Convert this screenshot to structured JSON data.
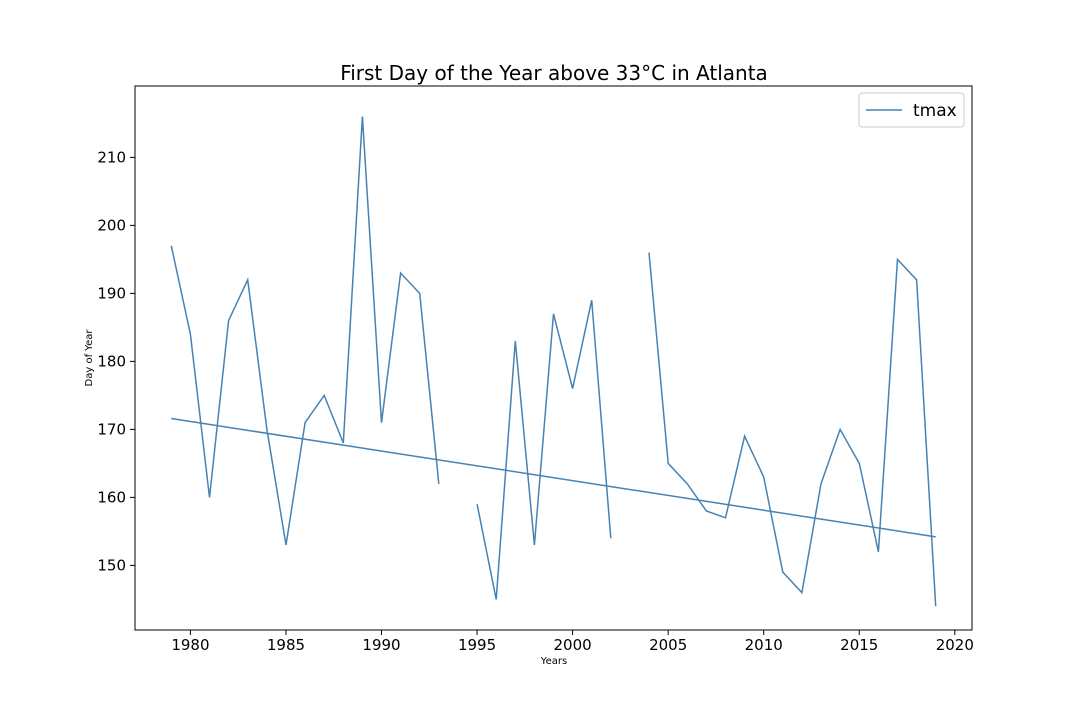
{
  "chart_data": {
    "type": "line",
    "title": "First Day of the Year above 33°C in Atlanta",
    "xlabel": "Years",
    "ylabel": "Day of Year",
    "xlim": [
      1977.1,
      2020.9
    ],
    "ylim": [
      140.5,
      220.5
    ],
    "xticks": [
      1980,
      1985,
      1990,
      1995,
      2000,
      2005,
      2010,
      2015,
      2020
    ],
    "yticks": [
      150,
      160,
      170,
      180,
      190,
      200,
      210
    ],
    "grid": false,
    "legend_position": "top-right",
    "series": [
      {
        "name": "tmax",
        "color": "#4682b4",
        "points": [
          [
            1979,
            197
          ],
          [
            1980,
            184
          ],
          [
            1981,
            160
          ],
          [
            1982,
            186
          ],
          [
            1983,
            192
          ],
          [
            1984,
            170
          ],
          [
            1985,
            153
          ],
          [
            1986,
            171
          ],
          [
            1987,
            175
          ],
          [
            1988,
            168
          ],
          [
            1989,
            216
          ],
          [
            1990,
            171
          ],
          [
            1991,
            193
          ],
          [
            1992,
            190
          ],
          [
            1993,
            162
          ],
          [
            1994,
            null
          ],
          [
            1995,
            159
          ],
          [
            1996,
            145
          ],
          [
            1997,
            183
          ],
          [
            1998,
            153
          ],
          [
            1999,
            187
          ],
          [
            2000,
            176
          ],
          [
            2001,
            189
          ],
          [
            2002,
            154
          ],
          [
            2003,
            null
          ],
          [
            2004,
            196
          ],
          [
            2005,
            165
          ],
          [
            2006,
            162
          ],
          [
            2007,
            158
          ],
          [
            2008,
            157
          ],
          [
            2009,
            169
          ],
          [
            2010,
            163
          ],
          [
            2011,
            149
          ],
          [
            2012,
            146
          ],
          [
            2013,
            162
          ],
          [
            2014,
            170
          ],
          [
            2015,
            165
          ],
          [
            2016,
            152
          ],
          [
            2017,
            195
          ],
          [
            2018,
            192
          ],
          [
            2019,
            144
          ]
        ]
      }
    ],
    "trend_line": {
      "color": "#4682b4",
      "points": [
        [
          1979,
          171.6
        ],
        [
          2019,
          154.2
        ]
      ]
    }
  }
}
